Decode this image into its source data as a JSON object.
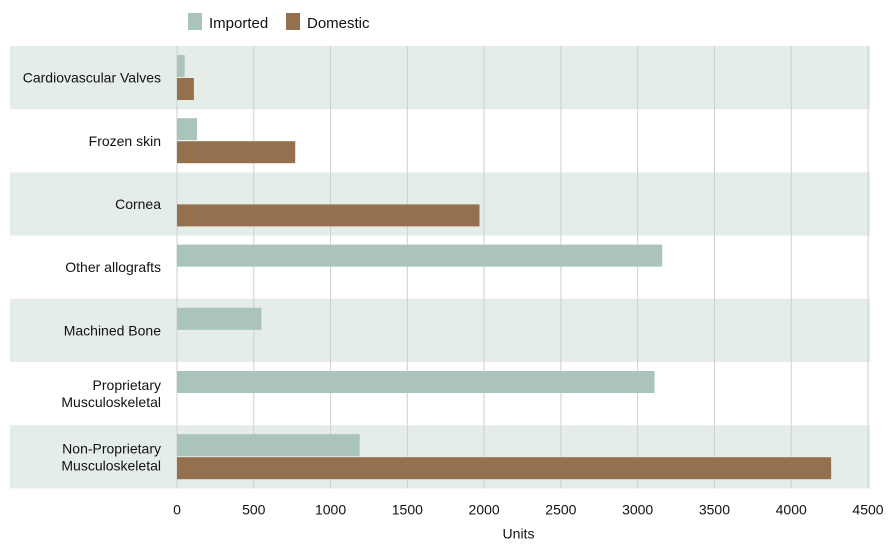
{
  "chart_data": {
    "type": "bar",
    "orientation": "horizontal",
    "categories": [
      "Cardiovascular Valves",
      "Frozen skin",
      "Cornea",
      "Other allografts",
      "Machined Bone",
      "Proprietary Musculoskeletal",
      "Non-Proprietary Musculoskeletal"
    ],
    "series": [
      {
        "name": "Imported",
        "color": "#abc4b9",
        "values": [
          50,
          130,
          0,
          3160,
          550,
          3110,
          1190
        ]
      },
      {
        "name": "Domestic",
        "color": "#94704e",
        "values": [
          110,
          770,
          1970,
          0,
          0,
          0,
          4260
        ]
      }
    ],
    "xlabel": "Units",
    "ylabel": "",
    "xlim": [
      0,
      4500
    ],
    "xticks": [
      0,
      500,
      1000,
      1500,
      2000,
      2500,
      3000,
      3500,
      4000,
      4500
    ],
    "xtick_labels": [
      "0",
      "500",
      "1000",
      "1500",
      "2000",
      "2500",
      "3000",
      "3500",
      "4000",
      "4500"
    ],
    "grid": "vertical",
    "legend": "top-left",
    "band_color": "#e5ede9"
  }
}
